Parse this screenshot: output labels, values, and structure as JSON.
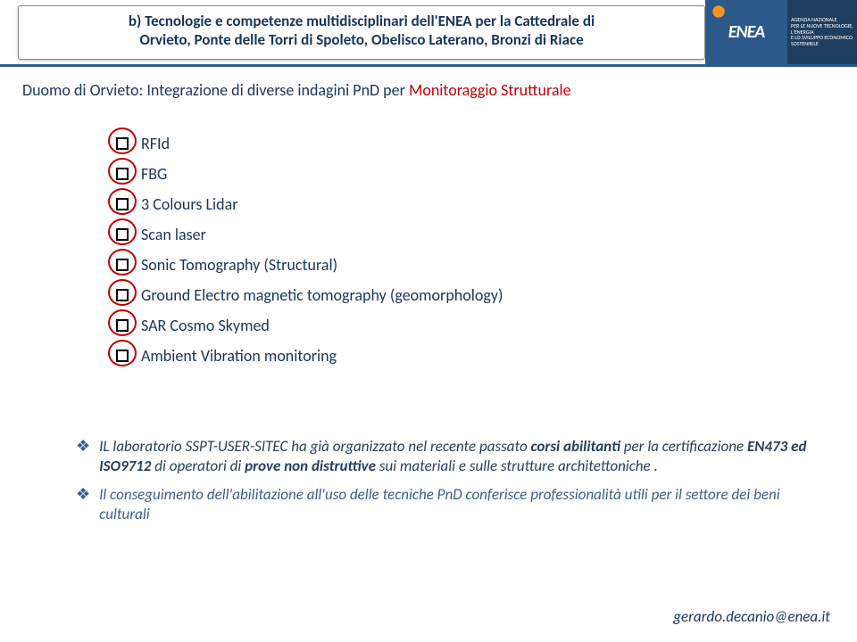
{
  "header": {
    "line1": "b) Tecnologie e competenze multidisciplinari dell'ENEA per la Cattedrale di",
    "line2": "Orvieto, Ponte delle Torri di Spoleto, Obelisco Laterano, Bronzi di Riace"
  },
  "logo": {
    "name": "ENEA",
    "tag1": "AGENZIA NAZIONALE",
    "tag2": "PER LE NUOVE TECNOLOGIE,",
    "tag3": "L'ENERGIA",
    "tag4": "E LO SVILUPPO ECONOMICO SOSTENIBILE"
  },
  "subtitle": {
    "part1": "Duomo di Orvieto: Integrazione di diverse indagini PnD  per  ",
    "red": "Monitoraggio Strutturale"
  },
  "checklist": [
    {
      "label": "RFId",
      "circled": true
    },
    {
      "label": "FBG",
      "circled": true
    },
    {
      "label": "3 Colours Lidar",
      "circled": true
    },
    {
      "label": "Scan laser",
      "circled": true
    },
    {
      "label": "Sonic Tomography (Structural)",
      "circled": true
    },
    {
      "label": "Ground Electro magnetic tomography (geomorphology)",
      "circled": true
    },
    {
      "label": "SAR Cosmo Skymed",
      "circled": true
    },
    {
      "label": "Ambient Vibration monitoring",
      "circled": true
    }
  ],
  "bottom": {
    "b1_pre": "IL laboratorio SSPT-USER-SITEC  ha già organizzato nel recente passato ",
    "b1_corsi": "corsi abilitanti",
    "b1_mid": " per la certificazione ",
    "b1_cert": "EN473 ed ISO9712",
    "b1_mid2": "  di  operatori di ",
    "b1_prove": "prove non distruttive",
    "b1_tail": " sui materiali e sulle strutture architettoniche .",
    "b2_pre": "Il conseguimento dell'abilitazione  all'uso delle tecniche PnD  conferisce professionalità utili  per il settore dei beni culturali"
  },
  "email": "gerardo.decanio@enea.it"
}
